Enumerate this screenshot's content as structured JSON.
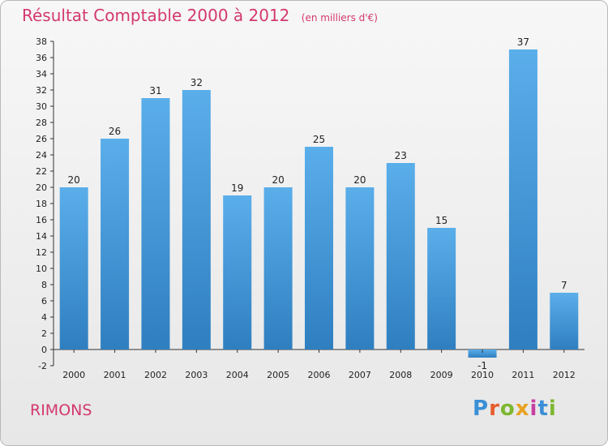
{
  "title": {
    "main": "Résultat Comptable 2000 à 2012",
    "unit": "(en milliers d'€)"
  },
  "commune": "RIMONS",
  "logo": {
    "letters": [
      "P",
      "r",
      "o",
      "x",
      "i",
      "t",
      "i"
    ],
    "colors": [
      "#3a8fd6",
      "#e65c2c",
      "#7cb82f",
      "#e8a21f",
      "#c63fa0",
      "#3a8fd6",
      "#7cb82f"
    ]
  },
  "colors": {
    "title": "#d3386f",
    "bar_top": "#5aaeea",
    "bar_bottom": "#2f7fc0"
  },
  "chart_data": {
    "type": "bar",
    "title": "Résultat Comptable 2000 à 2012",
    "xlabel": "",
    "ylabel": "",
    "categories": [
      "2000",
      "2001",
      "2002",
      "2003",
      "2004",
      "2005",
      "2006",
      "2007",
      "2008",
      "2009",
      "2010",
      "2011",
      "2012"
    ],
    "values": [
      20,
      26,
      31,
      32,
      19,
      20,
      25,
      20,
      23,
      15,
      -1,
      37,
      7
    ],
    "ylim": [
      -2,
      38
    ],
    "yticks": [
      -2,
      0,
      2,
      4,
      6,
      8,
      10,
      12,
      14,
      16,
      18,
      20,
      22,
      24,
      26,
      28,
      30,
      32,
      34,
      36,
      38
    ],
    "grid": false,
    "legend": "none"
  }
}
